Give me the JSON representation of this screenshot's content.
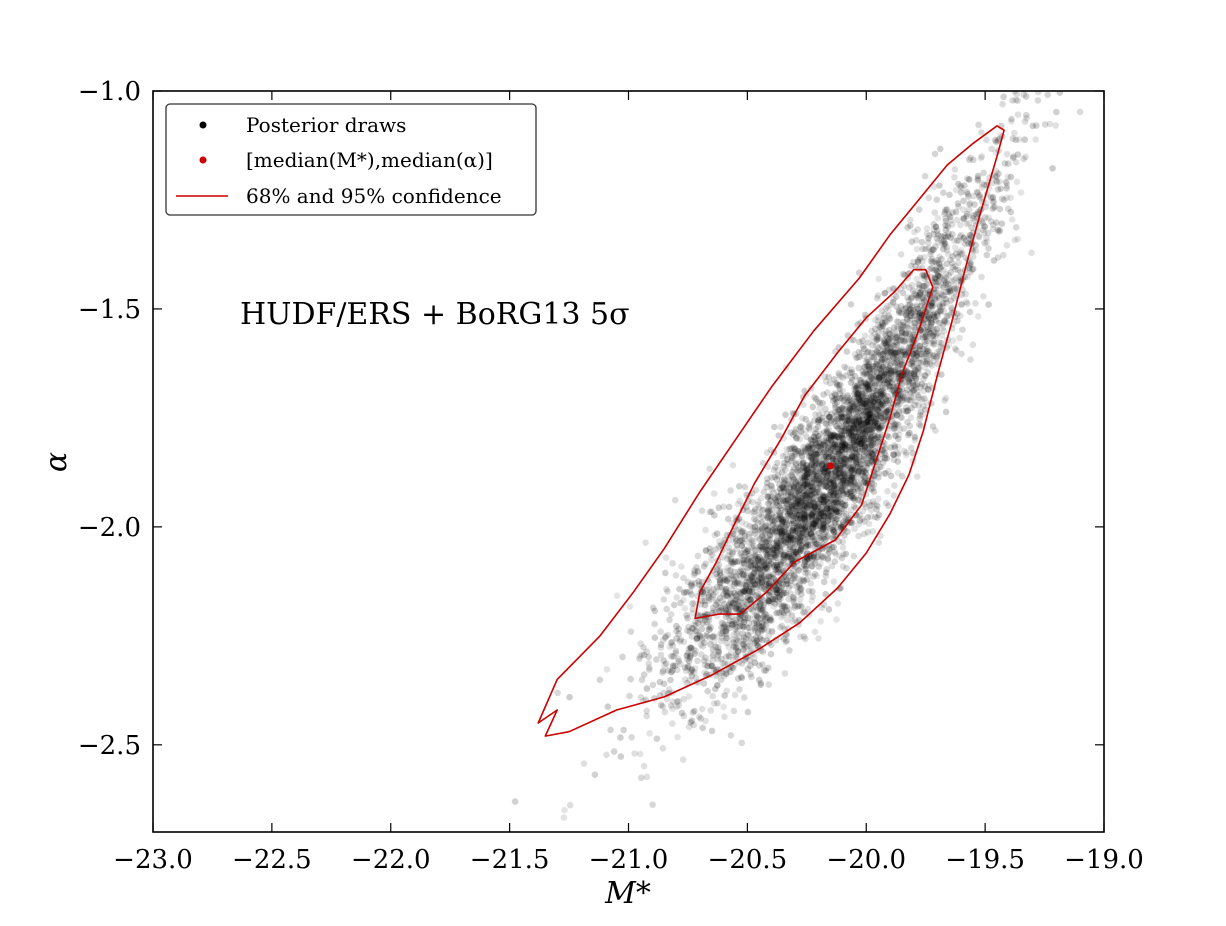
{
  "chart_data": {
    "type": "scatter",
    "xlabel": "M*",
    "ylabel": "α",
    "xlim": [
      -23.0,
      -19.0
    ],
    "ylim": [
      -2.7,
      -1.0
    ],
    "xticks": [
      -23.0,
      -22.5,
      -22.0,
      -21.5,
      -21.0,
      -20.5,
      -20.0,
      -19.5,
      -19.0
    ],
    "xtick_labels": [
      "−23.0",
      "−22.5",
      "−22.0",
      "−21.5",
      "−21.0",
      "−20.5",
      "−20.0",
      "−19.5",
      "−19.0"
    ],
    "yticks": [
      -1.0,
      -1.5,
      -2.0,
      -2.5
    ],
    "ytick_labels": [
      "−1.0",
      "−1.5",
      "−2.0",
      "−2.5"
    ],
    "grid": false,
    "annotation": "HUDF/ERS + BoRG13 5σ",
    "legend": {
      "position": "upper-left",
      "entries": [
        {
          "label": "Posterior draws",
          "marker": "point",
          "color": "#000000"
        },
        {
          "label": "[median(M*),median(α)]",
          "marker": "point",
          "color": "#cc0000"
        },
        {
          "label": "68% and 95% confidence",
          "marker": "line",
          "color": "#cc0000"
        }
      ]
    },
    "series": [
      {
        "name": "Posterior draws",
        "kind": "point-cloud",
        "color": "#000000",
        "count": 5000,
        "distribution": {
          "mean_x": -20.15,
          "mean_y": -1.86,
          "sd_x": 0.33,
          "sd_y": 0.28,
          "correlation": 0.93
        }
      },
      {
        "name": "[median(M*),median(α)]",
        "kind": "point",
        "color": "#cc0000",
        "x": -20.15,
        "y": -1.86
      },
      {
        "name": "68% confidence",
        "kind": "contour",
        "color": "#cc0000",
        "points": [
          [
            -19.75,
            -1.41
          ],
          [
            -19.72,
            -1.45
          ],
          [
            -19.78,
            -1.55
          ],
          [
            -19.85,
            -1.65
          ],
          [
            -19.9,
            -1.75
          ],
          [
            -19.96,
            -1.85
          ],
          [
            -20.02,
            -1.95
          ],
          [
            -20.13,
            -2.03
          ],
          [
            -20.3,
            -2.08
          ],
          [
            -20.42,
            -2.15
          ],
          [
            -20.53,
            -2.2
          ],
          [
            -20.62,
            -2.2
          ],
          [
            -20.72,
            -2.21
          ],
          [
            -20.7,
            -2.15
          ],
          [
            -20.63,
            -2.08
          ],
          [
            -20.56,
            -2.0
          ],
          [
            -20.47,
            -1.9
          ],
          [
            -20.36,
            -1.8
          ],
          [
            -20.26,
            -1.7
          ],
          [
            -20.12,
            -1.6
          ],
          [
            -20.0,
            -1.52
          ],
          [
            -19.88,
            -1.46
          ],
          [
            -19.8,
            -1.41
          ],
          [
            -19.75,
            -1.41
          ]
        ]
      },
      {
        "name": "95% confidence",
        "kind": "contour",
        "color": "#cc0000",
        "points": [
          [
            -19.45,
            -1.08
          ],
          [
            -19.42,
            -1.09
          ],
          [
            -19.45,
            -1.15
          ],
          [
            -19.52,
            -1.28
          ],
          [
            -19.58,
            -1.4
          ],
          [
            -19.64,
            -1.53
          ],
          [
            -19.7,
            -1.65
          ],
          [
            -19.76,
            -1.78
          ],
          [
            -19.82,
            -1.88
          ],
          [
            -19.9,
            -1.97
          ],
          [
            -20.0,
            -2.06
          ],
          [
            -20.12,
            -2.14
          ],
          [
            -20.28,
            -2.22
          ],
          [
            -20.45,
            -2.28
          ],
          [
            -20.65,
            -2.34
          ],
          [
            -20.85,
            -2.39
          ],
          [
            -21.05,
            -2.42
          ],
          [
            -21.25,
            -2.47
          ],
          [
            -21.35,
            -2.48
          ],
          [
            -21.3,
            -2.42
          ],
          [
            -21.38,
            -2.45
          ],
          [
            -21.3,
            -2.35
          ],
          [
            -21.12,
            -2.25
          ],
          [
            -20.98,
            -2.15
          ],
          [
            -20.85,
            -2.05
          ],
          [
            -20.7,
            -1.92
          ],
          [
            -20.55,
            -1.8
          ],
          [
            -20.4,
            -1.68
          ],
          [
            -20.22,
            -1.55
          ],
          [
            -20.03,
            -1.43
          ],
          [
            -19.9,
            -1.33
          ],
          [
            -19.78,
            -1.25
          ],
          [
            -19.66,
            -1.17
          ],
          [
            -19.55,
            -1.12
          ],
          [
            -19.45,
            -1.08
          ]
        ]
      }
    ]
  }
}
